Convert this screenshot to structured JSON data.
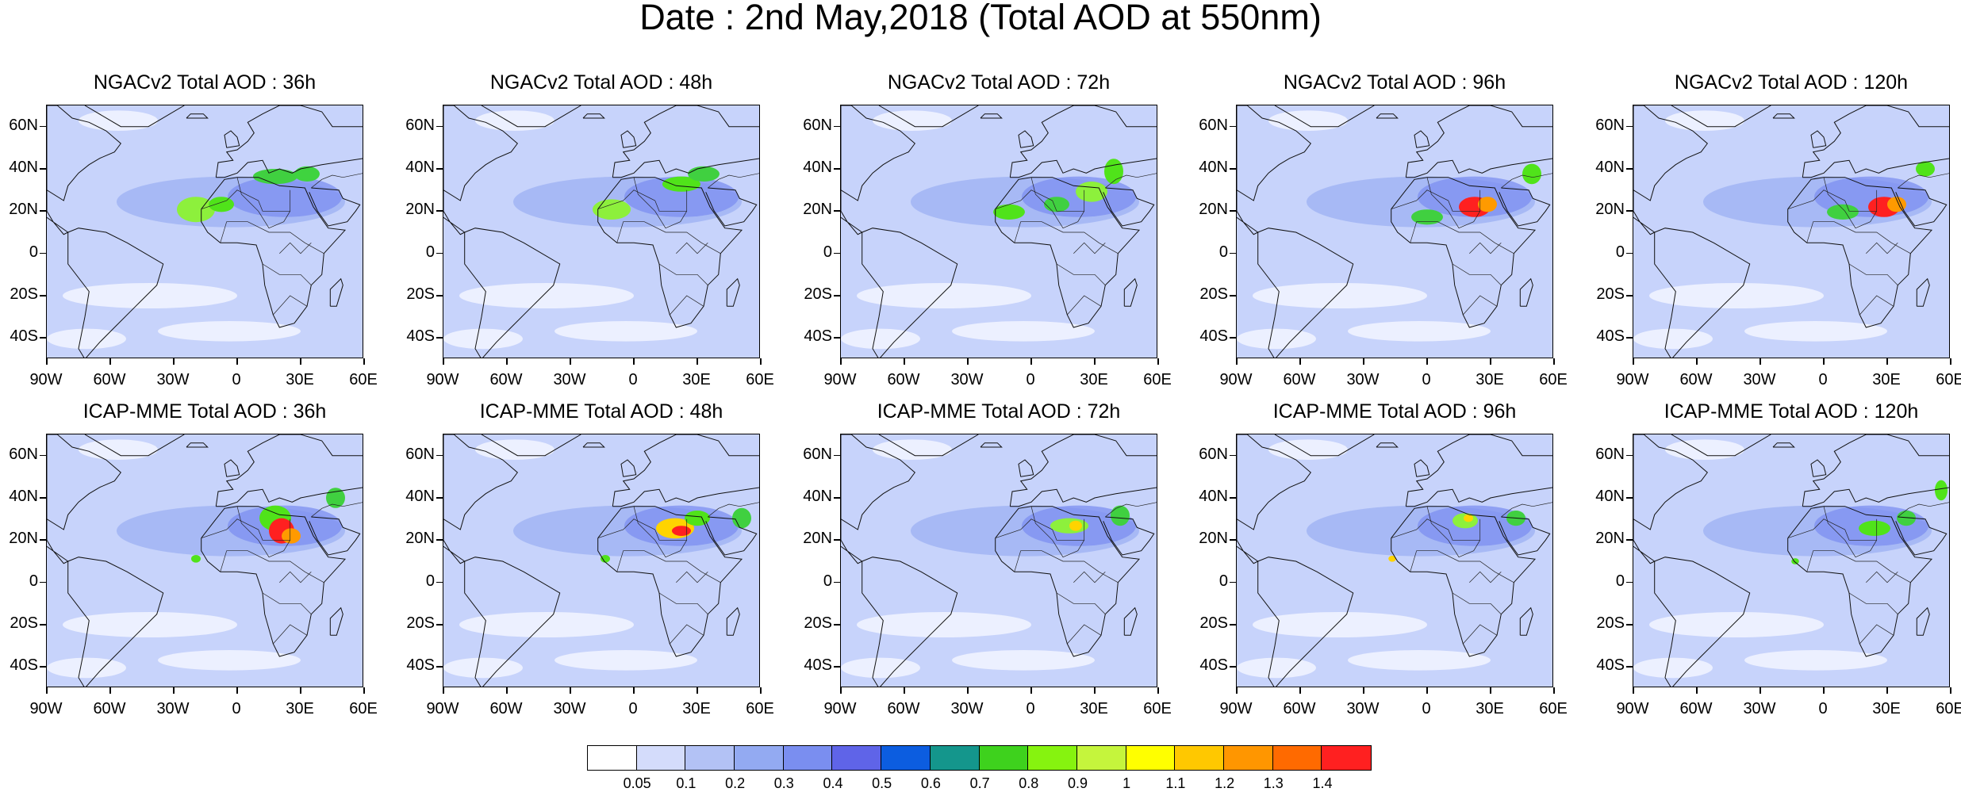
{
  "title": "Date : 2nd May,2018 (Total AOD at 550nm)",
  "panels": [
    {
      "title": "NGACv2 Total AOD : 36h",
      "plumes": [
        [
          0.47,
          0.41,
          0.06,
          0.05,
          "#8df03c"
        ],
        [
          0.55,
          0.39,
          0.04,
          0.03,
          "#50e31a"
        ],
        [
          0.72,
          0.28,
          0.07,
          0.03,
          "#40d040"
        ],
        [
          0.82,
          0.27,
          0.04,
          0.03,
          "#3fd33f"
        ]
      ]
    },
    {
      "title": "NGACv2 Total AOD : 48h",
      "plumes": [
        [
          0.53,
          0.41,
          0.06,
          0.04,
          "#8df03c"
        ],
        [
          0.75,
          0.31,
          0.06,
          0.03,
          "#50e31a"
        ],
        [
          0.82,
          0.27,
          0.05,
          0.03,
          "#40d040"
        ]
      ]
    },
    {
      "title": "NGACv2 Total AOD : 72h",
      "plumes": [
        [
          0.53,
          0.42,
          0.05,
          0.03,
          "#50e31a"
        ],
        [
          0.68,
          0.39,
          0.04,
          0.03,
          "#40d040"
        ],
        [
          0.79,
          0.34,
          0.05,
          0.04,
          "#8df03c"
        ],
        [
          0.86,
          0.26,
          0.03,
          0.05,
          "#50e31a"
        ]
      ]
    },
    {
      "title": "NGACv2 Total AOD : 96h",
      "plumes": [
        [
          0.6,
          0.44,
          0.05,
          0.03,
          "#40d040"
        ],
        [
          0.75,
          0.4,
          0.05,
          0.04,
          "#ff2020"
        ],
        [
          0.79,
          0.39,
          0.03,
          0.03,
          "#ff9a00"
        ],
        [
          0.93,
          0.27,
          0.03,
          0.04,
          "#50e31a"
        ]
      ]
    },
    {
      "title": "NGACv2 Total AOD : 120h",
      "plumes": [
        [
          0.66,
          0.42,
          0.05,
          0.03,
          "#40d040"
        ],
        [
          0.79,
          0.4,
          0.05,
          0.04,
          "#ff2020"
        ],
        [
          0.83,
          0.39,
          0.03,
          0.03,
          "#ff9a00"
        ],
        [
          0.92,
          0.25,
          0.03,
          0.03,
          "#50e31a"
        ]
      ]
    },
    {
      "title": "ICAP-MME Total AOD : 36h",
      "plumes": [
        [
          0.72,
          0.33,
          0.05,
          0.05,
          "#50e31a"
        ],
        [
          0.74,
          0.38,
          0.04,
          0.05,
          "#ff2020"
        ],
        [
          0.77,
          0.4,
          0.03,
          0.03,
          "#ff9a00"
        ],
        [
          0.91,
          0.25,
          0.03,
          0.04,
          "#40d040"
        ],
        [
          0.47,
          0.49,
          0.015,
          0.015,
          "#50e31a"
        ]
      ]
    },
    {
      "title": "ICAP-MME Total AOD : 48h",
      "plumes": [
        [
          0.73,
          0.37,
          0.06,
          0.04,
          "#ffd400"
        ],
        [
          0.75,
          0.38,
          0.03,
          0.02,
          "#ff2020"
        ],
        [
          0.8,
          0.33,
          0.04,
          0.03,
          "#50e31a"
        ],
        [
          0.94,
          0.33,
          0.03,
          0.04,
          "#40d040"
        ],
        [
          0.51,
          0.49,
          0.015,
          0.015,
          "#50e31a"
        ]
      ]
    },
    {
      "title": "ICAP-MME Total AOD : 72h",
      "plumes": [
        [
          0.72,
          0.36,
          0.06,
          0.03,
          "#8df03c"
        ],
        [
          0.74,
          0.36,
          0.02,
          0.02,
          "#ffd400"
        ],
        [
          0.88,
          0.32,
          0.03,
          0.04,
          "#40d040"
        ]
      ]
    },
    {
      "title": "ICAP-MME Total AOD : 96h",
      "plumes": [
        [
          0.72,
          0.34,
          0.04,
          0.03,
          "#8df03c"
        ],
        [
          0.73,
          0.33,
          0.015,
          0.015,
          "#ffd400"
        ],
        [
          0.88,
          0.33,
          0.03,
          0.03,
          "#40d040"
        ],
        [
          0.49,
          0.49,
          0.012,
          0.012,
          "#ffd400"
        ]
      ]
    },
    {
      "title": "ICAP-MME Total AOD : 120h",
      "plumes": [
        [
          0.76,
          0.37,
          0.05,
          0.03,
          "#50e31a"
        ],
        [
          0.86,
          0.33,
          0.03,
          0.03,
          "#40d040"
        ],
        [
          0.97,
          0.22,
          0.02,
          0.04,
          "#50e31a"
        ],
        [
          0.51,
          0.5,
          0.012,
          0.012,
          "#50e31a"
        ]
      ]
    }
  ],
  "lat_ticks": [
    "60N",
    "40N",
    "20N",
    "0",
    "20S",
    "40S"
  ],
  "lat_values": [
    60,
    40,
    20,
    0,
    -20,
    -40
  ],
  "lon_ticks": [
    "90W",
    "60W",
    "30W",
    "0",
    "30E",
    "60E"
  ],
  "lon_values": [
    -90,
    -60,
    -30,
    0,
    30,
    60
  ],
  "lat_range": [
    -50,
    70
  ],
  "lon_range": [
    -90,
    60
  ],
  "colorbar": {
    "colors": [
      "#ffffff",
      "#d4dcfb",
      "#b3c2f5",
      "#93aaf2",
      "#7a8ef0",
      "#5f64e8",
      "#0c5de0",
      "#14968c",
      "#3ed21d",
      "#86f30f",
      "#c5f53c",
      "#ffff00",
      "#ffc800",
      "#ff9600",
      "#ff6a00",
      "#ff2020"
    ],
    "labels": [
      "0.05",
      "0.1",
      "0.2",
      "0.3",
      "0.4",
      "0.5",
      "0.6",
      "0.7",
      "0.8",
      "0.9",
      "1",
      "1.1",
      "1.2",
      "1.3",
      "1.4"
    ]
  }
}
